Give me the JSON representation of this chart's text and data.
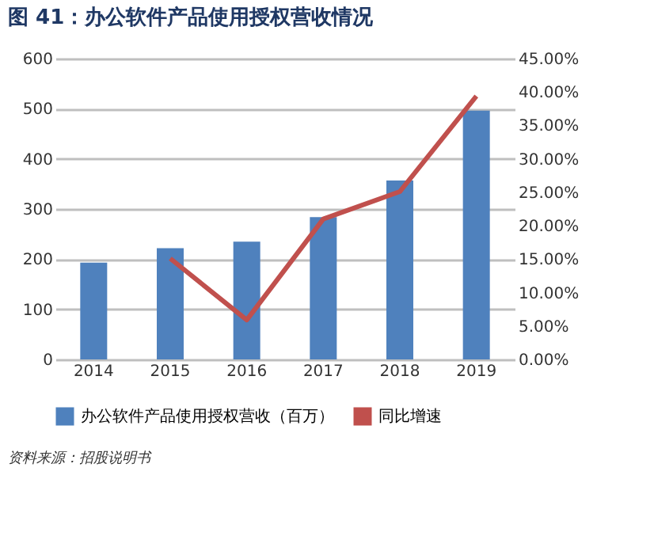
{
  "chart_data": {
    "type": "bar",
    "title": "图 41：办公软件产品使用授权营收情况",
    "categories": [
      "2014",
      "2015",
      "2016",
      "2017",
      "2018",
      "2019"
    ],
    "series": [
      {
        "name": "办公软件产品使用授权营收（百万）",
        "color": "#4f81bd",
        "values": [
          193,
          222,
          235,
          284,
          357,
          496
        ]
      },
      {
        "name": "同比增速",
        "color": "#c0504d",
        "type": "line",
        "axis": "y2",
        "values": [
          null,
          15.1,
          5.9,
          21.0,
          25.1,
          39.4
        ]
      }
    ],
    "ylim": [
      0,
      600
    ],
    "yticks": [
      0,
      100,
      200,
      300,
      400,
      500,
      600
    ],
    "y2lim": [
      0,
      45
    ],
    "y2ticks": [
      {
        "value": 0,
        "label": "0.00%"
      },
      {
        "value": 5,
        "label": "5.00%"
      },
      {
        "value": 10,
        "label": "10.00%"
      },
      {
        "value": 15,
        "label": "15.00%"
      },
      {
        "value": 20,
        "label": "20.00%"
      },
      {
        "value": 25,
        "label": "25.00%"
      },
      {
        "value": 30,
        "label": "30.00%"
      },
      {
        "value": 35,
        "label": "35.00%"
      },
      {
        "value": 40,
        "label": "40.00%"
      },
      {
        "value": 45,
        "label": "45.00%"
      }
    ],
    "grid": "y",
    "legend": "bottom",
    "marker": "none",
    "line_style": "solid",
    "annotations": [
      "资料来源：招股说明书"
    ]
  }
}
